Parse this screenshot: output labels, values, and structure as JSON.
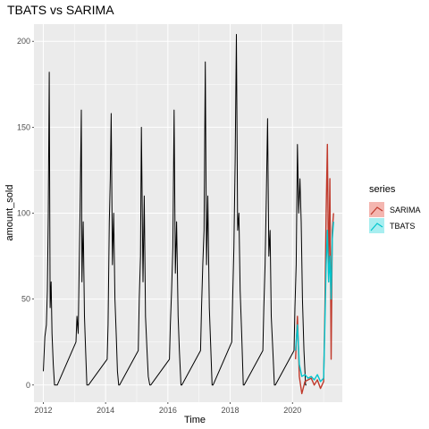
{
  "chart_data": {
    "type": "line",
    "title": "TBATS vs SARIMA",
    "xlabel": "Time",
    "ylabel": "amount_sold",
    "xlim": [
      2011.7,
      2021.6
    ],
    "ylim": [
      -10,
      210
    ],
    "x_ticks": [
      2012,
      2014,
      2016,
      2018,
      2020
    ],
    "x_tick_labels": [
      "2012",
      "2014",
      "2016",
      "2018",
      "2020"
    ],
    "y_ticks": [
      0,
      50,
      100,
      150,
      200
    ],
    "y_tick_labels": [
      "0",
      "50",
      "100",
      "150",
      "200"
    ],
    "grid": true,
    "background": "#ebebeb",
    "legend": {
      "title": "series",
      "position": "right",
      "entries": [
        {
          "label": "SARIMA",
          "color": "#c0392b",
          "fill": "#f4b6b0"
        },
        {
          "label": "TBATS",
          "color": "#00c5cd",
          "fill": "#a8eef0"
        }
      ]
    },
    "series": [
      {
        "color": "#000000",
        "x": [
          2012.0,
          2012.05,
          2012.1,
          2012.13,
          2012.16,
          2012.19,
          2012.22,
          2012.25,
          2012.28,
          2012.32,
          2012.36,
          2012.4,
          2012.42,
          2012.45,
          2013.05,
          2013.08,
          2013.12,
          2013.15,
          2013.18,
          2013.22,
          2013.24,
          2013.28,
          2013.32,
          2013.36,
          2013.4,
          2013.42,
          2013.45,
          2014.05,
          2014.08,
          2014.12,
          2014.15,
          2014.18,
          2014.22,
          2014.26,
          2014.3,
          2014.34,
          2014.38,
          2014.42,
          2014.45,
          2015.05,
          2015.08,
          2015.12,
          2015.15,
          2015.2,
          2015.24,
          2015.28,
          2015.33,
          2015.37,
          2015.42,
          2015.45,
          2016.05,
          2016.08,
          2016.12,
          2016.16,
          2016.2,
          2016.24,
          2016.28,
          2016.33,
          2016.37,
          2016.42,
          2016.45,
          2017.05,
          2017.08,
          2017.12,
          2017.16,
          2017.2,
          2017.24,
          2017.28,
          2017.33,
          2017.37,
          2017.42,
          2017.45,
          2018.05,
          2018.08,
          2018.12,
          2018.16,
          2018.2,
          2018.24,
          2018.28,
          2018.32,
          2018.37,
          2018.42,
          2018.45,
          2019.05,
          2019.08,
          2019.12,
          2019.16,
          2019.2,
          2019.24,
          2019.28,
          2019.32,
          2019.37,
          2019.42,
          2019.45,
          2020.05,
          2020.08,
          2020.12,
          2020.16,
          2020.2,
          2020.24,
          2020.28,
          2020.32,
          2020.37,
          2020.42,
          2020.45,
          2020.5,
          2020.6,
          2020.7,
          2020.8,
          2020.9,
          2021.0,
          2021.08,
          2021.14,
          2021.18,
          2021.22,
          2021.26,
          2021.3
        ],
        "y": [
          8,
          28,
          35,
          55,
          98,
          182,
          45,
          60,
          30,
          12,
          0,
          0,
          0,
          0,
          25,
          40,
          30,
          65,
          102,
          160,
          60,
          95,
          40,
          20,
          0,
          0,
          0,
          15,
          35,
          95,
          120,
          158,
          70,
          100,
          50,
          30,
          8,
          0,
          0,
          20,
          50,
          75,
          150,
          60,
          110,
          40,
          20,
          5,
          0,
          0,
          15,
          35,
          55,
          80,
          160,
          65,
          95,
          40,
          20,
          0,
          0,
          20,
          45,
          70,
          90,
          188,
          70,
          110,
          45,
          25,
          0,
          0,
          25,
          50,
          80,
          130,
          204,
          90,
          100,
          55,
          30,
          0,
          0,
          20,
          45,
          70,
          110,
          155,
          75,
          90,
          40,
          20,
          0,
          0,
          20,
          45,
          70,
          140,
          100,
          120,
          95,
          50,
          20,
          0,
          0,
          null,
          null,
          null,
          null,
          null,
          null,
          null,
          null,
          null,
          null,
          null,
          null
        ]
      },
      {
        "name": "SARIMA",
        "color": "#c0392b",
        "x": [
          2020.1,
          2020.16,
          2020.22,
          2020.3,
          2020.4,
          2020.5,
          2020.6,
          2020.7,
          2020.8,
          2020.9,
          2021.0,
          2021.04,
          2021.08,
          2021.12,
          2021.16,
          2021.2,
          2021.24,
          2021.28,
          2021.32
        ],
        "y": [
          15,
          40,
          5,
          -5,
          2,
          3,
          4,
          0,
          3,
          -2,
          2,
          45,
          100,
          140,
          60,
          120,
          15,
          90,
          100
        ]
      },
      {
        "name": "TBATS",
        "color": "#00c5cd",
        "x": [
          2020.1,
          2020.16,
          2020.22,
          2020.3,
          2020.4,
          2020.5,
          2020.6,
          2020.7,
          2020.8,
          2020.9,
          2021.0,
          2021.04,
          2021.08,
          2021.12,
          2021.16,
          2021.2,
          2021.24,
          2021.28,
          2021.32
        ],
        "y": [
          20,
          35,
          12,
          5,
          6,
          4,
          5,
          3,
          6,
          2,
          4,
          35,
          70,
          90,
          60,
          75,
          50,
          85,
          95
        ]
      }
    ]
  }
}
